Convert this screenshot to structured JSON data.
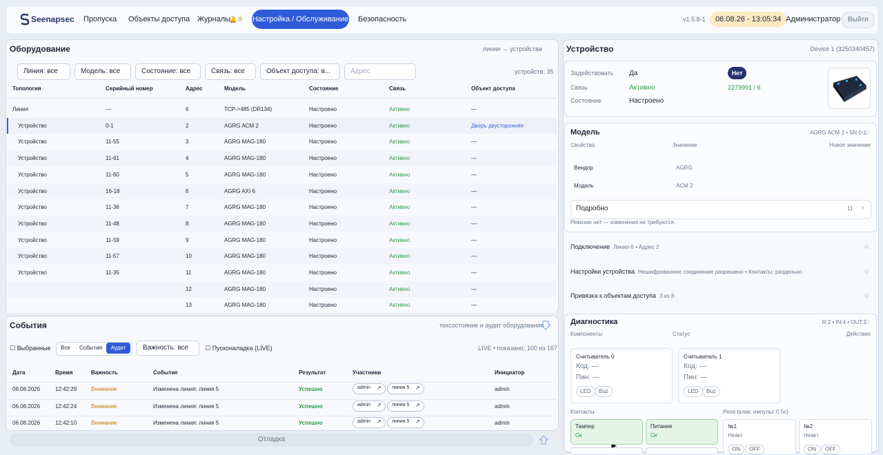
{
  "nav": {
    "logo": "Seenapsec",
    "items": [
      "Пропуска",
      "Объекты доступа",
      "Журналы",
      "Настройка / Обслуживание",
      "Безопасность"
    ],
    "journal_badge": "8",
    "version": "v1.5.8-1",
    "datetime": "06.08.26 - 13:05:34",
    "user": "Администратор",
    "logout": "Выйти"
  },
  "equipment": {
    "title": "Оборудование",
    "hint": "линии → устройства",
    "filters": [
      "Линия: все",
      "Модель: все",
      "Состояние: все",
      "Связь: все",
      "Объект доступа: в..."
    ],
    "address_placeholder": "Адрес",
    "count": "устройств: 35",
    "columns": [
      "Топология",
      "Серийный номер",
      "Адрес",
      "Модель",
      "Состояние",
      "Связь",
      "Объект доступа"
    ],
    "rows": [
      [
        "Линия",
        "—",
        "6",
        "TCP->485 (DR134)",
        "Настроено",
        "Активно",
        "—"
      ],
      [
        "Устройство",
        "0-1",
        "2",
        "AGRG ACM 2",
        "Настроено",
        "Активно",
        "Дверь двусторонняя"
      ],
      [
        "Устройство",
        "11-55",
        "3",
        "AGRG MAG-180",
        "Настроено",
        "Активно",
        "—"
      ],
      [
        "Устройство",
        "11-61",
        "4",
        "AGRG MAG-180",
        "Настроено",
        "Активно",
        "—"
      ],
      [
        "Устройство",
        "11-60",
        "5",
        "AGRG MAG-180",
        "Настроено",
        "Активно",
        "—"
      ],
      [
        "Устройство",
        "16-18",
        "6",
        "AGRG AXI 6",
        "Настроено",
        "Активно",
        "—"
      ],
      [
        "Устройство",
        "11-36",
        "7",
        "AGRG MAG-180",
        "Настроено",
        "Активно",
        "—"
      ],
      [
        "Устройство",
        "11-48",
        "8",
        "AGRG MAG-180",
        "Настроено",
        "Активно",
        "—"
      ],
      [
        "Устройство",
        "11-59",
        "9",
        "AGRG MAG-180",
        "Настроено",
        "Активно",
        "—"
      ],
      [
        "Устройство",
        "11-57",
        "10",
        "AGRG MAG-180",
        "Настроено",
        "Активно",
        "—"
      ],
      [
        "Устройство",
        "11-35",
        "11",
        "AGRG MAG-180",
        "Настроено",
        "Активно",
        "—"
      ],
      [
        null,
        null,
        "12",
        "AGRG MAG-180",
        "Настроено",
        "Активно",
        "—"
      ],
      [
        null,
        null,
        "13",
        "AGRG MAG-180",
        "Настроено",
        "Активно",
        "—"
      ]
    ]
  },
  "events": {
    "title": "События",
    "hint": "техсостояние и аудит оборудования",
    "selected": "Выбранные",
    "tabs": [
      "Все",
      "События",
      "Аудит"
    ],
    "severity": "Важность: все",
    "live": "Пусконаладка (LIVE)",
    "status": "LIVE • показано: 100 из 167",
    "columns": [
      "Дата",
      "Время",
      "Важность",
      "Событие",
      "Результат",
      "Участники",
      "Инициатор"
    ],
    "rows": [
      {
        "date": "06.08.2026",
        "time": "12:42:29",
        "severity": "Внимание",
        "event": "Изменена линия: линия 5",
        "result": "Успешно",
        "participants": [
          "admin",
          "линия 5"
        ],
        "initiator": "admin"
      },
      {
        "date": "06.08.2026",
        "time": "12:42:24",
        "severity": "Внимание",
        "event": "Изменена линия: линия 5",
        "result": "Успешно",
        "participants": [
          "admin",
          "линия 5"
        ],
        "initiator": "admin"
      },
      {
        "date": "06.08.2026",
        "time": "12:42:10",
        "severity": "Внимание",
        "event": "Изменена линия: линия 5",
        "result": "Успешно",
        "participants": [
          "admin",
          "линия 5"
        ],
        "initiator": "admin"
      }
    ]
  },
  "debug": "Отладка",
  "device": {
    "title": "Устройство",
    "id": "Device 1 (3250340457)",
    "enable_label": "Задействовать",
    "enable_yes": "Да",
    "enable_no": "Нет",
    "link_label": "Связь",
    "link_value": "Активно",
    "link_addr": "2279991 / 6",
    "state_label": "Состояние",
    "state_value": "Настроено",
    "model": {
      "title": "Модель",
      "summary": "AGRG ACM 2 • SN 0-1",
      "columns": [
        "Свойство",
        "Значение",
        "Новое значение"
      ],
      "rows": [
        [
          "Вендор",
          "AGRG"
        ],
        [
          "Модель",
          "ACM 2"
        ]
      ],
      "details": "Подробно",
      "details_count": "11",
      "note": "Ревизии нет — изменения не требуются."
    },
    "sections": [
      {
        "title": "Подключение",
        "summary": "Линия 6 • Адрес 2"
      },
      {
        "title": "Настройки устройства",
        "summary": "Нешифрованное соединение разрешено • Контакты: раздельно"
      },
      {
        "title": "Привязка к объектам доступа",
        "summary": "3 из 8"
      }
    ],
    "diagnostics": {
      "title": "Диагностика",
      "summary": "R:2 • IN:4 • OUT:2",
      "columns": [
        "Компоненты",
        "Статус",
        "Действие"
      ],
      "readers": [
        {
          "name": "Считыватель 0",
          "code": "Код: —",
          "pin": "Пин: —",
          "buttons": [
            "LED",
            "Buz"
          ]
        },
        {
          "name": "Считыватель 1",
          "code": "Код: —",
          "pin": "Пин: —",
          "buttons": [
            "LED",
            "Buz"
          ]
        }
      ],
      "contacts_label": "Контакты",
      "relay_label": "Реле (клик: импульс 0.5с)",
      "contacts": [
        {
          "name": "Тампер",
          "status": "Ок"
        },
        {
          "name": "Питание",
          "status": "Ок"
        }
      ],
      "relays": [
        {
          "name": "№1",
          "status": "Неакт",
          "buttons": [
            "ON",
            "OFF"
          ]
        },
        {
          "name": "№2",
          "status": "Неакт",
          "buttons": [
            "ON",
            "OFF"
          ]
        }
      ]
    }
  }
}
